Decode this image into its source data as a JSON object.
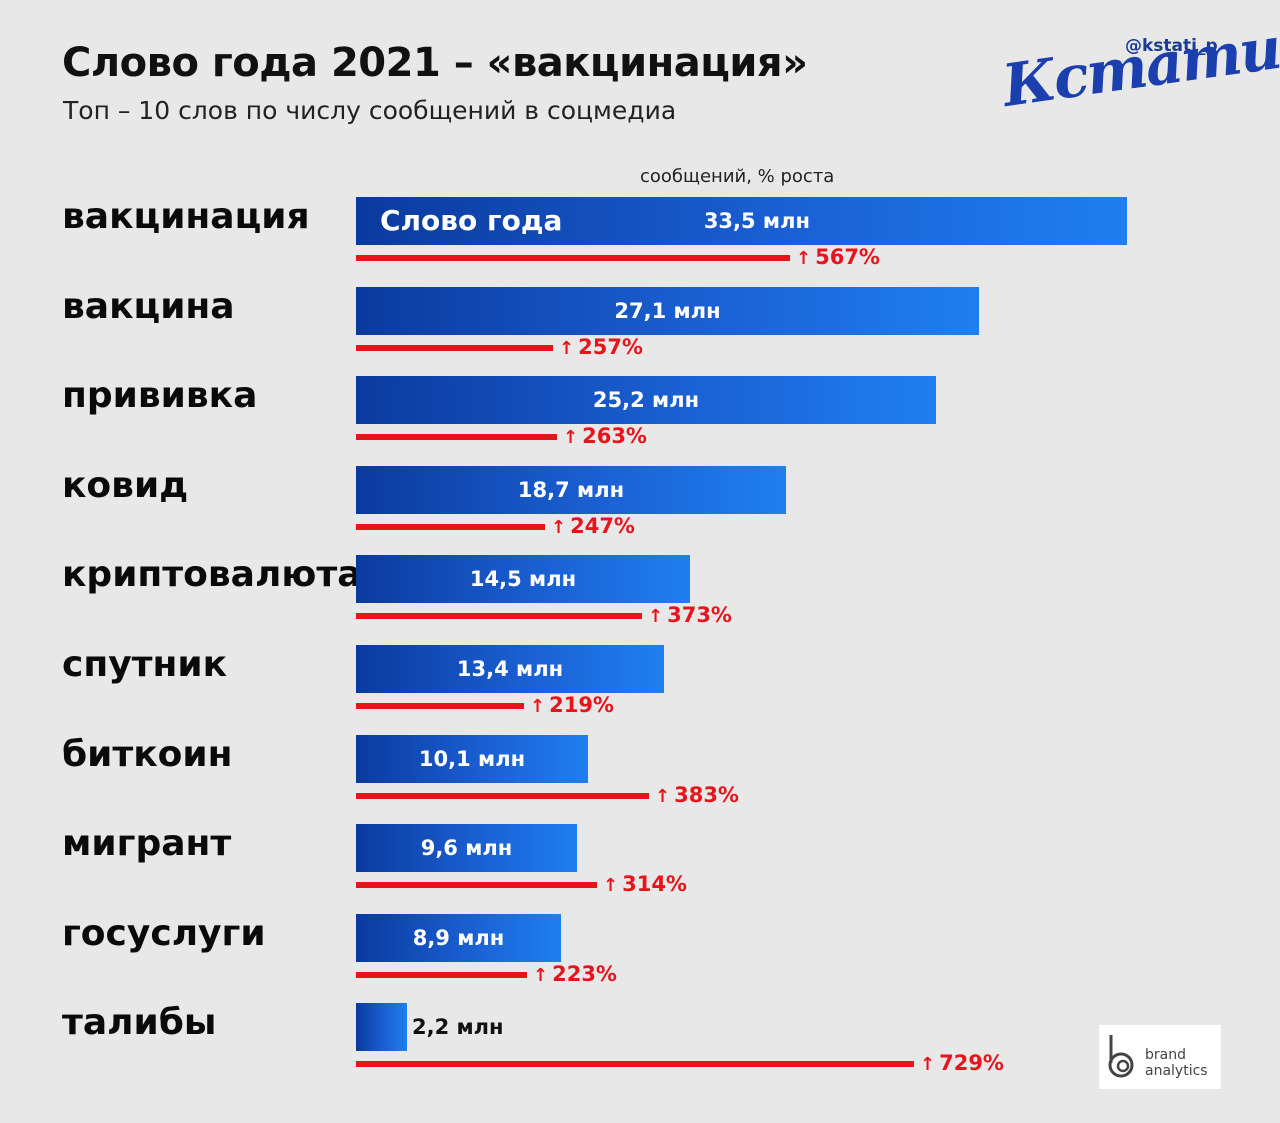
{
  "header": {
    "title": "Слово года 2021 – «вакцинация»",
    "subtitle": "Топ – 10 слов по числу сообщений в соцмедиа",
    "handle": "@kstati_p",
    "brand": "Кстати,"
  },
  "branding": {
    "logo_line1": "brand",
    "logo_line2": "analytics"
  },
  "colors": {
    "background": "#e8e8e8",
    "bar_dark": "#0b3a9e",
    "bar_light": "#1f7ff0",
    "growth": "#e8141c",
    "brand": "#1b3fae"
  },
  "chart_data": {
    "type": "bar",
    "orientation": "horizontal",
    "subtitle": "сообщений, % роста",
    "highlight_label": "Слово года",
    "categories": [
      "вакцинация",
      "вакцина",
      "прививка",
      "ковид",
      "криптовалюта",
      "спутник",
      "биткоин",
      "мигрант",
      "госуслуги",
      "талибы"
    ],
    "series": [
      {
        "values": [
          33.5,
          27.1,
          25.2,
          18.7,
          14.5,
          13.4,
          10.1,
          9.6,
          8.9,
          2.2
        ],
        "labels": [
          "33,5 млн",
          "27,1 млн",
          "25,2 млн",
          "18,7 млн",
          "14,5 млн",
          "13,4 млн",
          "10,1 млн",
          "9,6 млн",
          "8,9 млн",
          "2,2 млн"
        ]
      },
      {
        "values": [
          567,
          257,
          263,
          247,
          373,
          219,
          383,
          314,
          223,
          729
        ],
        "labels": [
          "567%",
          "257%",
          "263%",
          "247%",
          "373%",
          "219%",
          "383%",
          "314%",
          "223%",
          "729%"
        ]
      }
    ],
    "legend": "none",
    "grid": false
  }
}
